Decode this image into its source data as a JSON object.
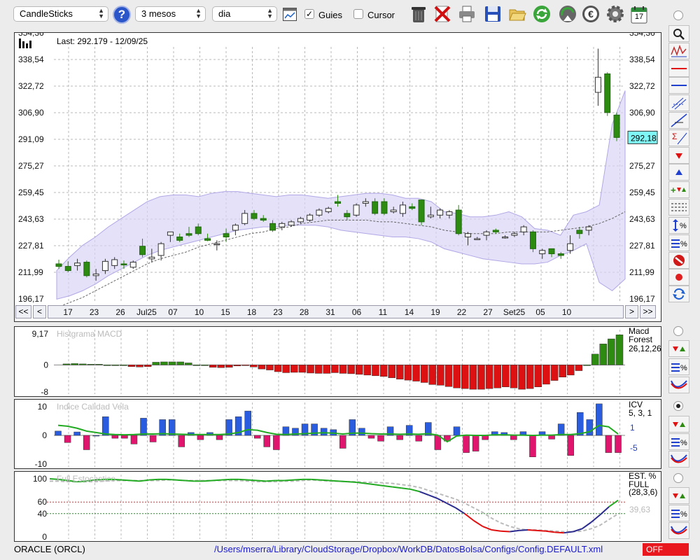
{
  "toolbar": {
    "chart_type": "CandleSticks",
    "period": "3 mesos",
    "interval": "dia",
    "guides_label": "Guies",
    "guides_checked": true,
    "cursor_label": "Cursor",
    "cursor_checked": false,
    "calendar_day": "17",
    "icons": [
      "help-icon",
      "chart-settings-icon",
      "trash-icon",
      "delete-icon",
      "print-icon",
      "save-icon",
      "open-folder-icon",
      "refresh-icon",
      "download-icon",
      "currency-icon",
      "gear-icon",
      "calendar-icon"
    ]
  },
  "price_panel": {
    "last_label": "Last: 292.179 - 12/09/25",
    "current_price_tag": "292,18",
    "y_ticks": [
      "354,36",
      "338,54",
      "322,72",
      "306,90",
      "291,09",
      "275,27",
      "259,45",
      "243,63",
      "227,81",
      "211,99",
      "196,17"
    ],
    "x_ticks": [
      "17",
      "23",
      "26",
      "Jul25",
      "07",
      "10",
      "15",
      "18",
      "23",
      "28",
      "31",
      "06",
      "11",
      "14",
      "19",
      "22",
      "27",
      "Set25",
      "05",
      "10"
    ],
    "nav": {
      "first": "<<",
      "prev": "<",
      "next": ">",
      "last": ">>"
    },
    "colors": {
      "up": "#ffffff",
      "down": "#2e8b12",
      "band": "#d9d4f5",
      "band_edge": "#b0a8e6"
    }
  },
  "macd_panel": {
    "title": "Histgrama MACD",
    "legend_name": "Macd Forest",
    "legend_params": "26,12,26",
    "y_ticks": [
      "9,17",
      "0",
      "-8"
    ],
    "colors": {
      "positive": "#2e8b12",
      "negative": "#dd1111"
    }
  },
  "icv_panel": {
    "title": "Indice Calidad Vela",
    "legend_name": "ICV",
    "legend_params": "5, 3, 1",
    "line_level_up": "1",
    "line_level_down": "-5",
    "y_ticks": [
      "10",
      "0",
      "-10"
    ],
    "colors": {
      "positive": "#2a5cdf",
      "negative": "#e0156e",
      "signal": "#22aa22"
    }
  },
  "stoch_panel": {
    "title": "Full Estocastico",
    "legend_name": "EST. % FULL",
    "legend_params": "(28,3,6)",
    "last_value": "39,63",
    "y_ticks": [
      "100",
      "60",
      "40",
      "0"
    ],
    "colors": {
      "k_up": "#22aa22",
      "k_down": "#e01010",
      "k_mid": "#2b2b8f",
      "d_line": "#bbbbbb"
    }
  },
  "chart_data": [
    {
      "type": "candlestick",
      "title": "Last: 292.179 - 12/09/25",
      "ylim": [
        196.17,
        354.36
      ],
      "candles": [
        {
          "o": 217.0,
          "h": 219.5,
          "l": 214.0,
          "c": 215.5
        },
        {
          "o": 215.5,
          "h": 218.5,
          "l": 212.0,
          "c": 213.0
        },
        {
          "o": 216.0,
          "h": 220.0,
          "l": 213.0,
          "c": 217.5
        },
        {
          "o": 218.0,
          "h": 219.0,
          "l": 209.0,
          "c": 210.0
        },
        {
          "o": 210.0,
          "h": 214.0,
          "l": 207.0,
          "c": 211.0
        },
        {
          "o": 213.0,
          "h": 220.0,
          "l": 211.0,
          "c": 218.5
        },
        {
          "o": 216.0,
          "h": 221.0,
          "l": 214.0,
          "c": 219.5
        },
        {
          "o": 217.0,
          "h": 219.0,
          "l": 214.0,
          "c": 216.5
        },
        {
          "o": 215.0,
          "h": 219.0,
          "l": 214.0,
          "c": 218.0
        },
        {
          "o": 227.5,
          "h": 232.0,
          "l": 221.0,
          "c": 222.5
        },
        {
          "o": 220.0,
          "h": 226.0,
          "l": 218.0,
          "c": 221.0
        },
        {
          "o": 222.0,
          "h": 230.0,
          "l": 219.0,
          "c": 229.0
        },
        {
          "o": 234.0,
          "h": 236.0,
          "l": 230.0,
          "c": 236.0
        },
        {
          "o": 233.0,
          "h": 235.0,
          "l": 230.0,
          "c": 231.0
        },
        {
          "o": 235.0,
          "h": 239.0,
          "l": 233.0,
          "c": 234.0
        },
        {
          "o": 239.0,
          "h": 241.0,
          "l": 234.0,
          "c": 235.0
        },
        {
          "o": 232.0,
          "h": 235.0,
          "l": 230.5,
          "c": 231.0
        },
        {
          "o": 229.0,
          "h": 231.0,
          "l": 225.0,
          "c": 229.0
        },
        {
          "o": 235.0,
          "h": 238.0,
          "l": 230.0,
          "c": 233.0
        },
        {
          "o": 237.0,
          "h": 241.0,
          "l": 234.0,
          "c": 240.0
        },
        {
          "o": 241.0,
          "h": 249.0,
          "l": 240.0,
          "c": 247.0
        },
        {
          "o": 247.0,
          "h": 249.0,
          "l": 243.0,
          "c": 244.0
        },
        {
          "o": 244.0,
          "h": 246.0,
          "l": 242.0,
          "c": 243.0
        },
        {
          "o": 241.0,
          "h": 243.0,
          "l": 236.0,
          "c": 237.0
        },
        {
          "o": 239.0,
          "h": 242.0,
          "l": 237.0,
          "c": 241.0
        },
        {
          "o": 240.0,
          "h": 243.0,
          "l": 239.0,
          "c": 242.0
        },
        {
          "o": 242.0,
          "h": 245.0,
          "l": 241.0,
          "c": 244.0
        },
        {
          "o": 243.0,
          "h": 247.0,
          "l": 242.0,
          "c": 246.0
        },
        {
          "o": 246.0,
          "h": 250.0,
          "l": 245.0,
          "c": 249.0
        },
        {
          "o": 248.0,
          "h": 251.0,
          "l": 247.0,
          "c": 250.0
        },
        {
          "o": 254.0,
          "h": 258.0,
          "l": 251.0,
          "c": 253.0
        },
        {
          "o": 247.0,
          "h": 249.0,
          "l": 243.0,
          "c": 245.0
        },
        {
          "o": 246.0,
          "h": 253.0,
          "l": 245.0,
          "c": 252.0
        },
        {
          "o": 253.0,
          "h": 256.0,
          "l": 251.0,
          "c": 254.0
        },
        {
          "o": 254.0,
          "h": 256.0,
          "l": 246.0,
          "c": 247.0
        },
        {
          "o": 254.0,
          "h": 256.0,
          "l": 246.0,
          "c": 247.0
        },
        {
          "o": 248.0,
          "h": 251.0,
          "l": 247.0,
          "c": 249.0
        },
        {
          "o": 247.0,
          "h": 254.0,
          "l": 245.0,
          "c": 252.0
        },
        {
          "o": 251.0,
          "h": 253.0,
          "l": 249.0,
          "c": 250.0
        },
        {
          "o": 255.0,
          "h": 255.0,
          "l": 240.0,
          "c": 242.0
        },
        {
          "o": 245.0,
          "h": 251.0,
          "l": 244.0,
          "c": 246.0
        },
        {
          "o": 246.0,
          "h": 250.0,
          "l": 244.0,
          "c": 249.0
        },
        {
          "o": 246.0,
          "h": 249.0,
          "l": 244.0,
          "c": 248.0
        },
        {
          "o": 249.0,
          "h": 252.0,
          "l": 234.0,
          "c": 235.0
        },
        {
          "o": 233.0,
          "h": 236.0,
          "l": 228.0,
          "c": 235.0
        },
        {
          "o": 232.0,
          "h": 233.0,
          "l": 232.0,
          "c": 232.0
        },
        {
          "o": 234.0,
          "h": 237.0,
          "l": 231.0,
          "c": 236.0
        },
        {
          "o": 237.0,
          "h": 238.0,
          "l": 235.0,
          "c": 236.0
        },
        {
          "o": 233.0,
          "h": 234.0,
          "l": 232.0,
          "c": 233.0
        },
        {
          "o": 234.0,
          "h": 236.0,
          "l": 233.0,
          "c": 235.0
        },
        {
          "o": 236.0,
          "h": 240.0,
          "l": 234.0,
          "c": 239.0
        },
        {
          "o": 236.0,
          "h": 237.0,
          "l": 224.0,
          "c": 226.0
        },
        {
          "o": 223.0,
          "h": 226.0,
          "l": 220.0,
          "c": 225.0
        },
        {
          "o": 226.0,
          "h": 226.0,
          "l": 221.0,
          "c": 223.0
        },
        {
          "o": 223.0,
          "h": 224.0,
          "l": 220.0,
          "c": 222.0
        },
        {
          "o": 225.0,
          "h": 234.0,
          "l": 223.0,
          "c": 229.0
        },
        {
          "o": 237.0,
          "h": 239.0,
          "l": 232.0,
          "c": 235.0
        },
        {
          "o": 237.0,
          "h": 240.0,
          "l": 234.0,
          "c": 239.0
        },
        {
          "o": 319.0,
          "h": 345.0,
          "l": 311.0,
          "c": 328.0
        },
        {
          "o": 330.0,
          "h": 331.0,
          "l": 305.0,
          "c": 307.0
        },
        {
          "o": 305.5,
          "h": 307.0,
          "l": 290.0,
          "c": 292.18
        }
      ],
      "band_upper": [
        213,
        221,
        228,
        233,
        239,
        244,
        249,
        254,
        257,
        258,
        258,
        257,
        259,
        260,
        260,
        259,
        258,
        257,
        258,
        258,
        257,
        256,
        257,
        258,
        259,
        259,
        258,
        256,
        256,
        254,
        248,
        247,
        245,
        245,
        246,
        248,
        245,
        238,
        237,
        234,
        246,
        248,
        252,
        300,
        320
      ],
      "band_lower": [
        196,
        198,
        201,
        205,
        210,
        214,
        218,
        222,
        225,
        227,
        229,
        231,
        233,
        235,
        237,
        238,
        239,
        239,
        240,
        240,
        240,
        239,
        237,
        236,
        235,
        234,
        233,
        233,
        232,
        230,
        226,
        224,
        222,
        220,
        219,
        218,
        217,
        217,
        218,
        222,
        225,
        229,
        206,
        201,
        208
      ],
      "ma": [
        191,
        194,
        197,
        201,
        205,
        209,
        213,
        217,
        220,
        222,
        224,
        227,
        229,
        231,
        233,
        235,
        236,
        238,
        239,
        241,
        242,
        243,
        243,
        243,
        243,
        242,
        242,
        241,
        240,
        239,
        237,
        236,
        235,
        235,
        235,
        236,
        236,
        236,
        236,
        237,
        238,
        239,
        241,
        244,
        248
      ]
    },
    {
      "type": "bar",
      "title": "Histgrama MACD",
      "ylim": [
        -8,
        9.17
      ],
      "values": [
        0.3,
        0.4,
        0.3,
        0.2,
        0.2,
        0,
        0,
        0,
        -0.5,
        -0.6,
        -0.5,
        0.8,
        0.9,
        0.9,
        0.9,
        0.6,
        0,
        0,
        -0.7,
        -0.8,
        -0.7,
        -0.3,
        -0.2,
        -0.6,
        -1.2,
        -1.5,
        -2.0,
        -2.3,
        -2.2,
        -2.2,
        -2.4,
        -2.5,
        -2.5,
        -2.3,
        -2.5,
        -2.6,
        -2.8,
        -3.0,
        -3.2,
        -3.4,
        -3.8,
        -4.2,
        -4.5,
        -4.8,
        -5.2,
        -5.8,
        -6.0,
        -6.4,
        -6.8,
        -7.0,
        -7.2,
        -7.2,
        -7.0,
        -6.8,
        -6.5,
        -6.8,
        -7.2,
        -7.0,
        -6.5,
        -5.7,
        -4.6,
        -3.6,
        -3.0,
        -1.7,
        0,
        3.2,
        6.2,
        7.7,
        8.9
      ]
    },
    {
      "type": "bar",
      "title": "Indice Calidad Vela",
      "ylim": [
        -10,
        10
      ],
      "values": [
        1.5,
        -2.5,
        1.2,
        -5,
        0,
        6.5,
        -1,
        -1,
        -3,
        6,
        -2.3,
        5.5,
        5.5,
        -4,
        1,
        -1.5,
        1,
        -1.5,
        5.5,
        6.5,
        8.5,
        -1,
        -4,
        -5,
        3,
        2.5,
        4,
        4,
        2.5,
        2,
        -4.5,
        5.5,
        2.5,
        -1,
        -2,
        3,
        -1.5,
        3.5,
        -2,
        4.5,
        -5,
        -2,
        3,
        -6,
        -5.5,
        -1.5,
        1.3,
        1,
        -1.5,
        1.3,
        -7.5,
        1.3,
        -1.3,
        4,
        -7,
        8,
        5.5,
        11,
        -6,
        -6
      ],
      "signal": [
        3.5,
        3.2,
        2.5,
        1.5,
        1.0,
        0.5,
        0.3,
        0.2,
        0.3,
        0.5,
        0.5,
        0.6,
        0.5,
        0.4,
        0.3,
        0.3,
        0.3,
        0.3,
        0.5,
        1.0,
        2.0,
        1.8,
        1.0,
        0.4,
        0.3,
        0.5,
        0.6,
        0.8,
        0.9,
        0.8,
        0.5,
        0.8,
        0.8,
        0.6,
        0.5,
        0.5,
        0.4,
        0.5,
        0.4,
        0.6,
        0.1,
        -2.2,
        -0.2,
        0.1,
        0,
        0,
        0.2,
        0.2,
        0.1,
        0.1,
        0,
        0.1,
        0.1,
        0.3,
        0.3,
        0.6,
        1.3,
        3.5,
        3.0,
        0.5
      ]
    },
    {
      "type": "line",
      "title": "Full Estocastico",
      "ylim": [
        0,
        100
      ],
      "k": [
        100,
        99,
        97,
        95,
        96,
        98,
        99,
        99,
        98,
        97,
        96,
        98,
        99,
        99,
        98,
        97,
        96,
        96,
        97,
        98,
        99,
        99,
        98,
        97,
        96,
        97,
        97,
        98,
        99,
        99,
        98,
        97,
        96,
        95,
        94,
        92,
        90,
        88,
        86,
        84,
        82,
        78,
        72,
        66,
        58,
        50,
        40,
        28,
        18,
        12,
        10,
        9,
        11,
        12,
        11,
        10,
        8,
        7,
        9,
        14,
        25,
        38,
        52,
        63
      ],
      "d": [
        96,
        96,
        95,
        95,
        95,
        95,
        96,
        97,
        97,
        97,
        97,
        97,
        97,
        98,
        98,
        97,
        97,
        97,
        97,
        97,
        97,
        97,
        96,
        95,
        95,
        95,
        96,
        96,
        97,
        98,
        97,
        96,
        96,
        95,
        95,
        94,
        94,
        93,
        92,
        90,
        88,
        85,
        80,
        75,
        70,
        65,
        58,
        50,
        42,
        32,
        24,
        18,
        14,
        12,
        12,
        11,
        10,
        9,
        9,
        10,
        14,
        20,
        30,
        39.63
      ]
    }
  ],
  "status": {
    "symbol": "ORACLE (ORCL)",
    "path": "/Users/mserra/Library/CloudStorage/Dropbox/WorkDB/DatosBolsa/Configs/Config.DEFAULT.xml",
    "mode": "OFF"
  }
}
